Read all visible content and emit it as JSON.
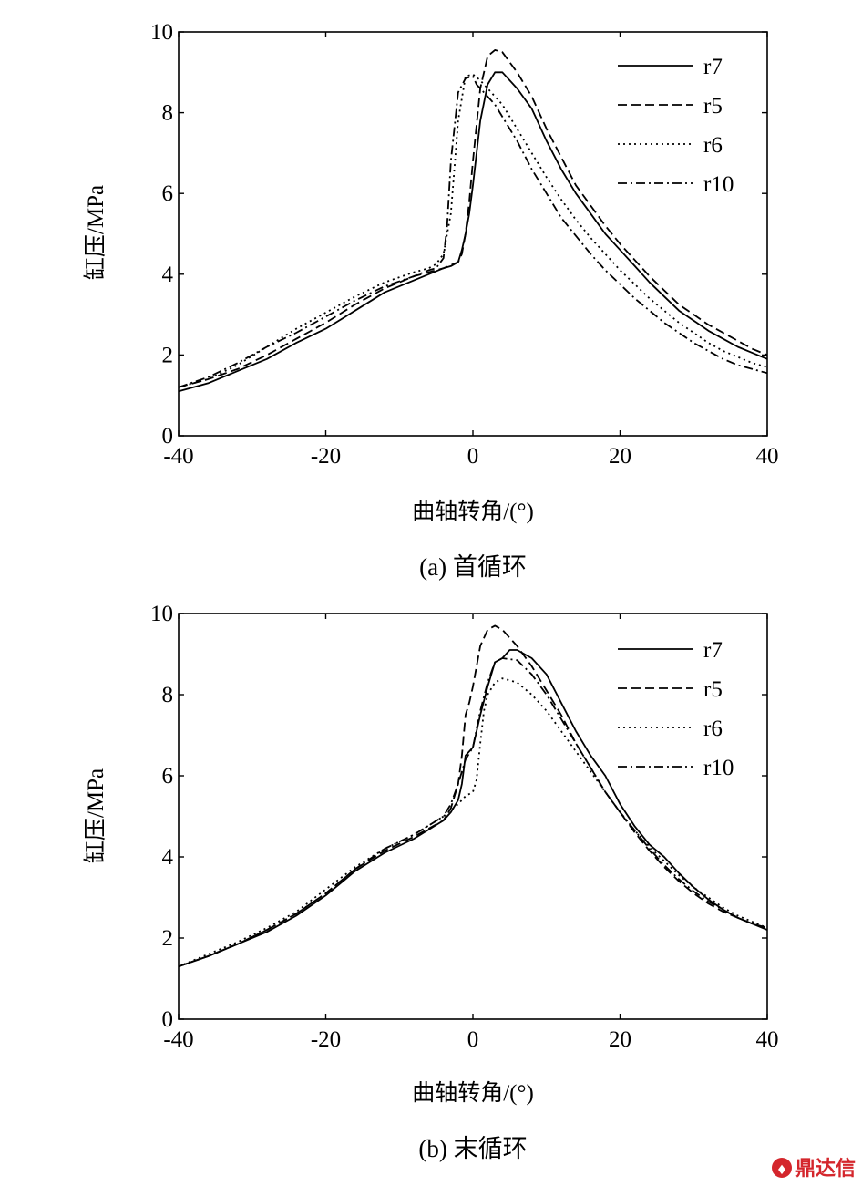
{
  "colors": {
    "line": "#000000",
    "watermark": "#d4262c"
  },
  "watermark": {
    "text": "鼎达信",
    "icon": "logo-icon"
  },
  "chart_data": [
    {
      "type": "line",
      "caption": "(a) 首循环",
      "xlabel": "曲轴转角/(°)",
      "ylabel": "缸压/MPa",
      "xlim": [
        -40,
        40
      ],
      "ylim": [
        0,
        10
      ],
      "xticks": [
        -40,
        -20,
        0,
        20,
        40
      ],
      "yticks": [
        0,
        2,
        4,
        6,
        8,
        10
      ],
      "grid": false,
      "legend": "top-right",
      "series": [
        {
          "name": "r7",
          "style": "solid",
          "x": [
            -40,
            -36,
            -32,
            -28,
            -24,
            -20,
            -16,
            -12,
            -8,
            -6,
            -4,
            -3,
            -2,
            -1.5,
            -1,
            -0.5,
            0,
            1,
            2,
            3,
            4,
            6,
            8,
            10,
            12,
            14,
            16,
            18,
            20,
            22,
            24,
            26,
            28,
            30,
            32,
            34,
            36,
            38,
            40
          ],
          "y": [
            1.1,
            1.3,
            1.6,
            1.9,
            2.3,
            2.65,
            3.1,
            3.55,
            3.85,
            4.0,
            4.15,
            4.2,
            4.3,
            4.6,
            5.0,
            5.5,
            6.2,
            7.8,
            8.7,
            9.0,
            9.0,
            8.6,
            8.1,
            7.3,
            6.6,
            6.0,
            5.5,
            5.0,
            4.6,
            4.2,
            3.8,
            3.45,
            3.1,
            2.85,
            2.6,
            2.4,
            2.2,
            2.05,
            1.9
          ]
        },
        {
          "name": "r5",
          "style": "dashed",
          "x": [
            -40,
            -36,
            -32,
            -28,
            -24,
            -20,
            -16,
            -12,
            -8,
            -6,
            -4,
            -2,
            -1.5,
            -1,
            -0.5,
            0,
            1,
            2,
            3,
            4,
            6,
            8,
            10,
            12,
            14,
            16,
            18,
            20,
            22,
            24,
            26,
            28,
            30,
            32,
            34,
            36,
            38,
            40
          ],
          "y": [
            1.2,
            1.4,
            1.65,
            2.0,
            2.4,
            2.8,
            3.25,
            3.65,
            3.95,
            4.05,
            4.15,
            4.3,
            4.5,
            5.0,
            5.8,
            6.8,
            8.6,
            9.4,
            9.55,
            9.5,
            9.0,
            8.4,
            7.6,
            6.9,
            6.2,
            5.7,
            5.2,
            4.75,
            4.35,
            3.95,
            3.6,
            3.25,
            3.0,
            2.75,
            2.55,
            2.35,
            2.15,
            2.0
          ]
        },
        {
          "name": "r6",
          "style": "dotted",
          "x": [
            -40,
            -36,
            -32,
            -28,
            -24,
            -20,
            -16,
            -12,
            -8,
            -6,
            -5,
            -4,
            -3,
            -2,
            -1,
            0,
            1,
            2,
            4,
            6,
            8,
            10,
            12,
            14,
            16,
            18,
            20,
            22,
            24,
            26,
            28,
            30,
            32,
            34,
            36,
            38,
            40
          ],
          "y": [
            1.2,
            1.4,
            1.75,
            2.2,
            2.65,
            3.05,
            3.45,
            3.8,
            4.05,
            4.15,
            4.25,
            4.5,
            5.5,
            7.8,
            8.9,
            8.95,
            8.8,
            8.6,
            8.2,
            7.6,
            7.0,
            6.4,
            5.85,
            5.35,
            4.9,
            4.5,
            4.1,
            3.75,
            3.4,
            3.1,
            2.8,
            2.55,
            2.3,
            2.1,
            1.95,
            1.8,
            1.7
          ]
        },
        {
          "name": "r10",
          "style": "dashdot",
          "x": [
            -40,
            -36,
            -32,
            -28,
            -24,
            -20,
            -16,
            -12,
            -8,
            -6,
            -5,
            -4,
            -3.5,
            -3,
            -2,
            -1,
            0,
            0.5,
            1,
            2,
            3,
            4,
            6,
            8,
            10,
            12,
            14,
            16,
            18,
            20,
            22,
            24,
            26,
            28,
            30,
            32,
            34,
            36,
            38,
            40
          ],
          "y": [
            1.2,
            1.45,
            1.8,
            2.2,
            2.55,
            2.95,
            3.35,
            3.7,
            3.95,
            4.1,
            4.15,
            4.4,
            5.2,
            6.8,
            8.5,
            8.85,
            8.9,
            8.7,
            8.6,
            8.4,
            8.2,
            7.9,
            7.3,
            6.6,
            6.0,
            5.4,
            4.95,
            4.5,
            4.1,
            3.75,
            3.4,
            3.1,
            2.8,
            2.55,
            2.3,
            2.1,
            1.9,
            1.75,
            1.65,
            1.55
          ]
        }
      ]
    },
    {
      "type": "line",
      "caption": "(b) 末循环",
      "xlabel": "曲轴转角/(°)",
      "ylabel": "缸压/MPa",
      "xlim": [
        -40,
        40
      ],
      "ylim": [
        0,
        10
      ],
      "xticks": [
        -40,
        -20,
        0,
        20,
        40
      ],
      "yticks": [
        0,
        2,
        4,
        6,
        8,
        10
      ],
      "grid": false,
      "legend": "top-right",
      "series": [
        {
          "name": "r7",
          "style": "solid",
          "x": [
            -40,
            -36,
            -32,
            -28,
            -24,
            -20,
            -16,
            -12,
            -8,
            -4,
            -3,
            -2,
            -1.5,
            -1,
            0,
            1,
            2,
            3,
            4,
            5,
            6,
            8,
            10,
            12,
            14,
            16,
            18,
            20,
            22,
            24,
            26,
            28,
            30,
            32,
            34,
            36,
            38,
            40
          ],
          "y": [
            1.3,
            1.55,
            1.85,
            2.15,
            2.55,
            3.05,
            3.65,
            4.1,
            4.45,
            4.9,
            5.1,
            5.4,
            5.8,
            6.5,
            6.7,
            7.5,
            8.2,
            8.8,
            8.9,
            9.1,
            9.1,
            8.9,
            8.5,
            7.8,
            7.1,
            6.5,
            6.0,
            5.3,
            4.75,
            4.3,
            4.0,
            3.6,
            3.25,
            2.95,
            2.7,
            2.5,
            2.35,
            2.2
          ]
        },
        {
          "name": "r5",
          "style": "dashed",
          "x": [
            -40,
            -36,
            -32,
            -28,
            -24,
            -20,
            -16,
            -12,
            -8,
            -4,
            -3,
            -2,
            -1.5,
            -1,
            -0.5,
            0,
            1,
            2,
            3,
            4,
            6,
            8,
            10,
            12,
            14,
            16,
            18,
            20,
            22,
            24,
            26,
            28,
            30,
            32,
            34,
            36,
            38,
            40
          ],
          "y": [
            1.3,
            1.55,
            1.85,
            2.2,
            2.6,
            3.1,
            3.7,
            4.15,
            4.5,
            4.9,
            5.2,
            5.8,
            6.5,
            7.5,
            7.8,
            8.2,
            9.2,
            9.6,
            9.7,
            9.6,
            9.2,
            8.7,
            8.1,
            7.5,
            6.8,
            6.2,
            5.6,
            5.1,
            4.6,
            4.15,
            3.75,
            3.4,
            3.1,
            2.85,
            2.65,
            2.5,
            2.35,
            2.25
          ]
        },
        {
          "name": "r6",
          "style": "dotted",
          "x": [
            -40,
            -36,
            -32,
            -28,
            -24,
            -20,
            -16,
            -12,
            -8,
            -4,
            -2,
            -1,
            0,
            0.5,
            1,
            1.5,
            2,
            3,
            4,
            6,
            8,
            10,
            12,
            14,
            16,
            18,
            20,
            22,
            24,
            26,
            28,
            30,
            32,
            34,
            36,
            38,
            40
          ],
          "y": [
            1.3,
            1.6,
            1.9,
            2.25,
            2.65,
            3.2,
            3.75,
            4.2,
            4.55,
            5.0,
            5.3,
            5.5,
            5.6,
            5.9,
            6.8,
            7.6,
            8.0,
            8.3,
            8.4,
            8.3,
            8.0,
            7.6,
            7.1,
            6.6,
            6.1,
            5.6,
            5.1,
            4.65,
            4.25,
            3.9,
            3.55,
            3.25,
            3.0,
            2.75,
            2.55,
            2.4,
            2.25
          ]
        },
        {
          "name": "r10",
          "style": "dashdot",
          "x": [
            -40,
            -36,
            -32,
            -28,
            -24,
            -20,
            -16,
            -12,
            -8,
            -4,
            -3,
            -2,
            -1.5,
            -1,
            0,
            1,
            2,
            3,
            4,
            6,
            8,
            10,
            12,
            14,
            16,
            18,
            20,
            22,
            24,
            26,
            28,
            30,
            32,
            34,
            36,
            38,
            40
          ],
          "y": [
            1.3,
            1.55,
            1.85,
            2.2,
            2.6,
            3.1,
            3.7,
            4.2,
            4.55,
            5.0,
            5.3,
            5.8,
            6.1,
            6.4,
            6.7,
            7.6,
            8.3,
            8.8,
            8.9,
            8.85,
            8.5,
            8.0,
            7.4,
            6.8,
            6.2,
            5.6,
            5.1,
            4.65,
            4.2,
            3.8,
            3.45,
            3.15,
            2.9,
            2.7,
            2.5,
            2.35,
            2.25
          ]
        }
      ]
    }
  ]
}
